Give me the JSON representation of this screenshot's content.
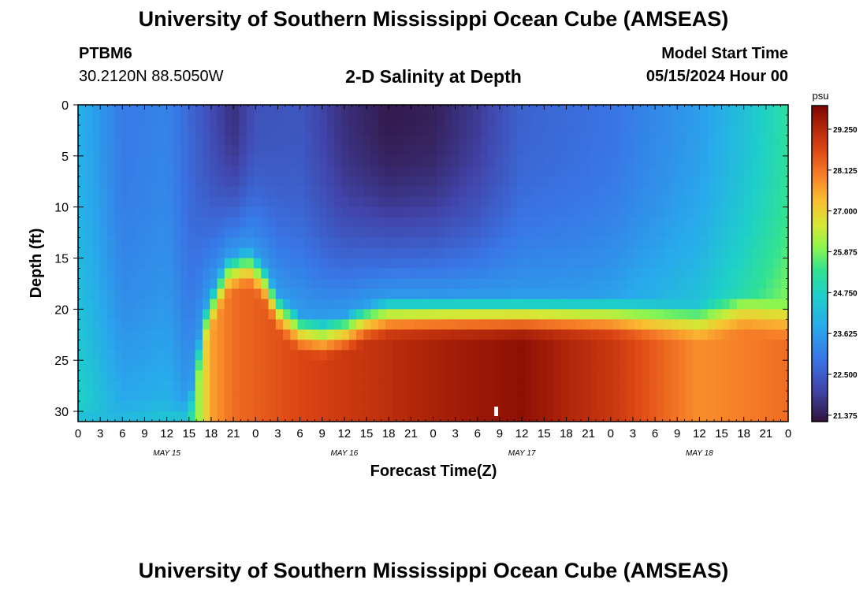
{
  "header": {
    "title": "University of Southern Mississippi Ocean Cube (AMSEAS)",
    "station_id": "PTBM6",
    "coordinates": "30.2120N  88.5050W",
    "subtitle": "2-D Salinity at Depth",
    "model_start_label": "Model Start Time",
    "model_start_value": "05/15/2024 Hour 00"
  },
  "footer": {
    "title": "University of Southern Mississippi Ocean Cube (AMSEAS)"
  },
  "chart_data": {
    "type": "heatmap",
    "xlabel": "Forecast Time(Z)",
    "ylabel": "Depth (ft)",
    "x_unit": "hours from model start",
    "x_range": [
      0,
      96
    ],
    "y_range": [
      0,
      31
    ],
    "y_inverted": true,
    "x_tick_labels": [
      "0",
      "3",
      "6",
      "9",
      "12",
      "15",
      "18",
      "21",
      "0",
      "3",
      "6",
      "9",
      "12",
      "15",
      "18",
      "21",
      "0",
      "3",
      "6",
      "9",
      "12",
      "15",
      "18",
      "21",
      "0",
      "3",
      "6",
      "9",
      "12",
      "15",
      "18",
      "21",
      "0"
    ],
    "day_labels": [
      {
        "text": "MAY 15",
        "hour": 12
      },
      {
        "text": "MAY 16",
        "hour": 36
      },
      {
        "text": "MAY 17",
        "hour": 60
      },
      {
        "text": "MAY 18",
        "hour": 84
      }
    ],
    "y_ticks": [
      0,
      5,
      10,
      15,
      20,
      25,
      30
    ],
    "colorbar": {
      "unit": "psu",
      "min": 21.2,
      "max": 29.9,
      "tick_values": [
        29.25,
        28.125,
        27.0,
        25.875,
        24.75,
        23.625,
        22.5,
        21.375
      ],
      "tick_labels": [
        "29.250",
        "28.125",
        "27.000",
        "25.875",
        "24.750",
        "23.625",
        "22.500",
        "21.375"
      ]
    },
    "pycnocline_depth_ft": [
      {
        "hour": 0,
        "depth": 31
      },
      {
        "hour": 15,
        "depth": 31
      },
      {
        "hour": 17,
        "depth": 22
      },
      {
        "hour": 20,
        "depth": 17
      },
      {
        "hour": 23,
        "depth": 16
      },
      {
        "hour": 25,
        "depth": 17.5
      },
      {
        "hour": 27,
        "depth": 20.5
      },
      {
        "hour": 30,
        "depth": 22.5
      },
      {
        "hour": 33,
        "depth": 23
      },
      {
        "hour": 36,
        "depth": 22.5
      },
      {
        "hour": 39,
        "depth": 21.5
      },
      {
        "hour": 42,
        "depth": 21
      },
      {
        "hour": 48,
        "depth": 21
      },
      {
        "hour": 60,
        "depth": 21
      },
      {
        "hour": 72,
        "depth": 21
      },
      {
        "hour": 84,
        "depth": 21.5
      },
      {
        "hour": 90,
        "depth": 20.5
      },
      {
        "hour": 96,
        "depth": 21.5
      }
    ],
    "surface_salinity_psu": [
      {
        "hour": 0,
        "value": 24.0
      },
      {
        "hour": 6,
        "value": 23.0
      },
      {
        "hour": 12,
        "value": 23.2
      },
      {
        "hour": 18,
        "value": 22.2
      },
      {
        "hour": 21,
        "value": 21.7
      },
      {
        "hour": 24,
        "value": 22.3
      },
      {
        "hour": 30,
        "value": 22.4
      },
      {
        "hour": 36,
        "value": 21.7
      },
      {
        "hour": 42,
        "value": 21.35
      },
      {
        "hour": 48,
        "value": 21.45
      },
      {
        "hour": 54,
        "value": 21.9
      },
      {
        "hour": 60,
        "value": 22.6
      },
      {
        "hour": 72,
        "value": 22.9
      },
      {
        "hour": 84,
        "value": 23.6
      },
      {
        "hour": 90,
        "value": 24.3
      },
      {
        "hour": 96,
        "value": 25.2
      }
    ],
    "bottom_salinity_psu": [
      {
        "hour": 0,
        "value": 23.9
      },
      {
        "hour": 15,
        "value": 25.0
      },
      {
        "hour": 18,
        "value": 27.6
      },
      {
        "hour": 21,
        "value": 28.2
      },
      {
        "hour": 30,
        "value": 28.7
      },
      {
        "hour": 48,
        "value": 29.4
      },
      {
        "hour": 60,
        "value": 29.7
      },
      {
        "hour": 72,
        "value": 29.0
      },
      {
        "hour": 84,
        "value": 27.8
      },
      {
        "hour": 96,
        "value": 28.2
      }
    ]
  }
}
